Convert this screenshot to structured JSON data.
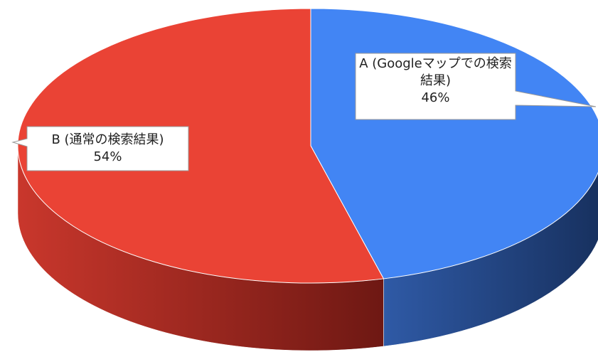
{
  "chart_data": {
    "type": "pie",
    "three_d": true,
    "categories": [
      "A (Googleマップでの検索結果)",
      "B (通常の検索結果)"
    ],
    "values": [
      46,
      54
    ],
    "value_labels": [
      "46%",
      "54%"
    ],
    "colors": [
      "#4285f4",
      "#ea4335"
    ]
  }
}
